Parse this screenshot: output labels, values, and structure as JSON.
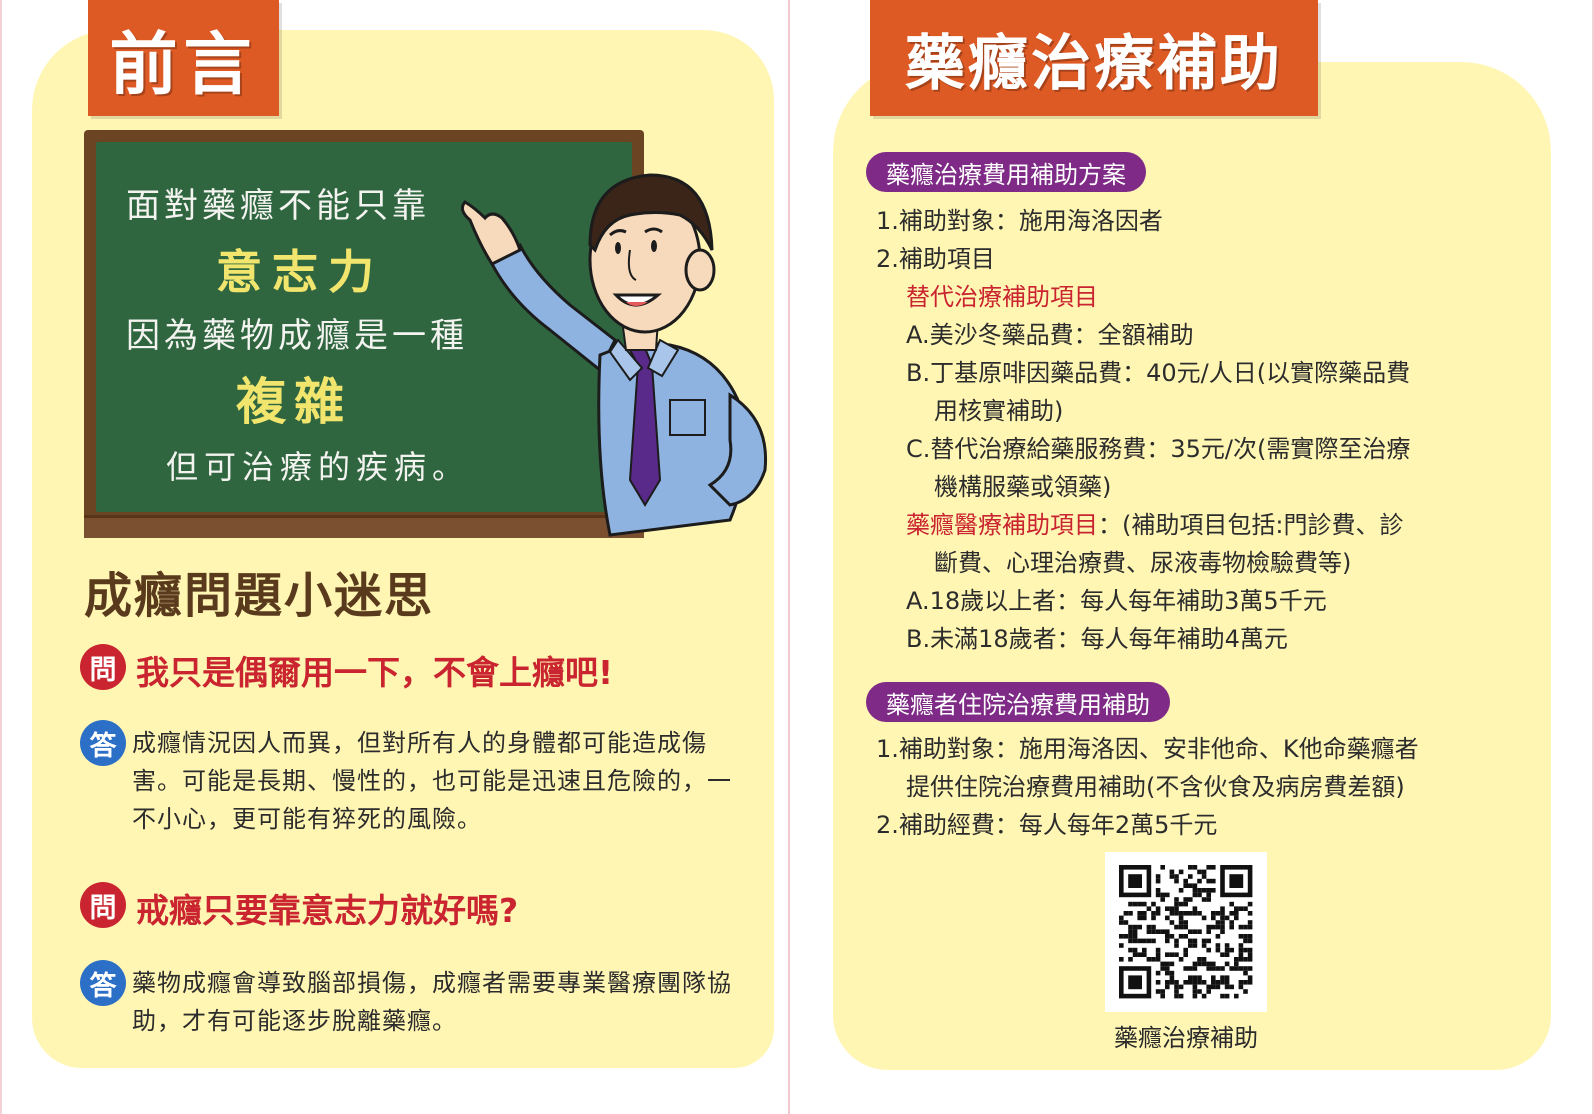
{
  "left_panel": {
    "header": "前言",
    "chalkboard": {
      "line1": "面對藥癮不能只靠",
      "line2": "意志力",
      "line3": "因為藥物成癮是一種",
      "line4": "複雜",
      "line5": "但可治療的疾病。"
    },
    "section_title": "成癮問題小迷思",
    "q_icon_label": "問",
    "a_icon_label": "答",
    "qa": [
      {
        "question": "我只是偶爾用一下，不會上癮吧!",
        "answer": "成癮情況因人而異，但對所有人的身體都可能造成傷害。可能是長期、慢性的，也可能是迅速且危險的，一不小心，更可能有猝死的風險。"
      },
      {
        "question": "戒癮只要靠意志力就好嗎?",
        "answer": "藥物成癮會導致腦部損傷，成癮者需要專業醫療團隊協助，才有可能逐步脫離藥癮。"
      }
    ]
  },
  "right_panel": {
    "header": "藥癮治療補助",
    "program1": {
      "title": "藥癮治療費用補助方案",
      "target": "1.補助對象：施用海洛因者",
      "items_label": "2.補助項目",
      "sub1_title": "替代治療補助項目",
      "sub1_items": [
        "A.美沙冬藥品費：全額補助",
        "B.丁基原啡因藥品費：40元/人日(以實際藥品費",
        "用核實補助)",
        "C.替代治療給藥服務費：35元/次(需實際至治療",
        "機構服藥或領藥)"
      ],
      "sub2_title": "藥癮醫療補助項目",
      "sub2_desc": "：(補助項目包括:門診費、診",
      "sub2_desc2": "斷費、心理治療費、尿液毒物檢驗費等)",
      "sub2_items": [
        "A.18歲以上者：每人每年補助3萬5千元",
        "B.未滿18歲者：每人每年補助4萬元"
      ]
    },
    "program2": {
      "title": "藥癮者住院治療費用補助",
      "lines": [
        "1.補助對象：施用海洛因、安非他命、K他命藥癮者",
        "提供住院治療費用補助(不含伙食及病房費差額)",
        "2.補助經費：每人每年2萬5千元"
      ]
    },
    "qr_caption": "藥癮治療補助"
  }
}
